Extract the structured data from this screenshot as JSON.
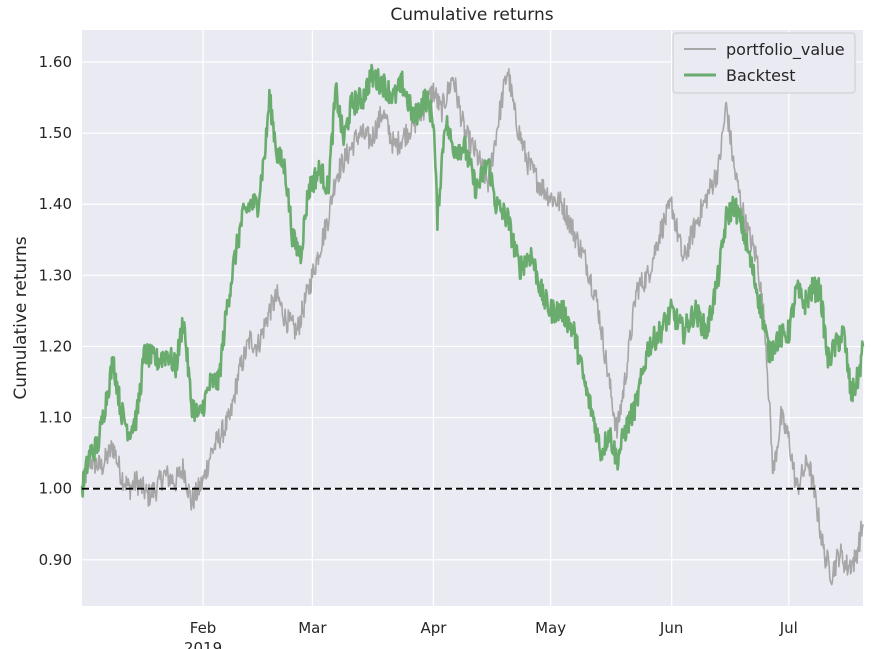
{
  "chart_data": {
    "type": "line",
    "title": "Cumulative returns",
    "xlabel": "",
    "ylabel": "Cumulative returns",
    "xlim": [
      "2019-01-01",
      "2019-07-20"
    ],
    "ylim": [
      0.835,
      1.645
    ],
    "grid": true,
    "legend_position": "top-right",
    "x_ticks": [
      {
        "date": "2019-02-01",
        "label": "Feb",
        "sublabel": "2019"
      },
      {
        "date": "2019-03-01",
        "label": "Mar"
      },
      {
        "date": "2019-04-01",
        "label": "Apr"
      },
      {
        "date": "2019-05-01",
        "label": "May"
      },
      {
        "date": "2019-06-01",
        "label": "Jun"
      },
      {
        "date": "2019-07-01",
        "label": "Jul"
      }
    ],
    "y_ticks": [
      {
        "value": 0.9,
        "label": "0.90"
      },
      {
        "value": 1.0,
        "label": "1.00"
      },
      {
        "value": 1.1,
        "label": "1.10"
      },
      {
        "value": 1.2,
        "label": "1.20"
      },
      {
        "value": 1.3,
        "label": "1.30"
      },
      {
        "value": 1.4,
        "label": "1.40"
      },
      {
        "value": 1.5,
        "label": "1.50"
      },
      {
        "value": 1.6,
        "label": "1.60"
      }
    ],
    "reference_line": {
      "y": 1.0,
      "style": "dashed",
      "color": "#000000"
    },
    "series": [
      {
        "name": "portfolio_value",
        "color": "#a6a6a6",
        "points": [
          [
            "2019-01-01",
            1.0
          ],
          [
            "2019-01-03",
            1.04
          ],
          [
            "2019-01-06",
            1.03
          ],
          [
            "2019-01-09",
            1.06
          ],
          [
            "2019-01-11",
            1.02
          ],
          [
            "2019-01-13",
            1.0
          ],
          [
            "2019-01-15",
            1.01
          ],
          [
            "2019-01-18",
            0.99
          ],
          [
            "2019-01-20",
            1.0
          ],
          [
            "2019-01-22",
            1.02
          ],
          [
            "2019-01-25",
            1.01
          ],
          [
            "2019-01-27",
            1.03
          ],
          [
            "2019-01-29",
            0.98
          ],
          [
            "2019-02-01",
            1.01
          ],
          [
            "2019-02-03",
            1.05
          ],
          [
            "2019-02-06",
            1.08
          ],
          [
            "2019-02-08",
            1.1
          ],
          [
            "2019-02-10",
            1.16
          ],
          [
            "2019-02-13",
            1.21
          ],
          [
            "2019-02-15",
            1.2
          ],
          [
            "2019-02-18",
            1.25
          ],
          [
            "2019-02-20",
            1.27
          ],
          [
            "2019-02-22",
            1.24
          ],
          [
            "2019-02-25",
            1.22
          ],
          [
            "2019-02-28",
            1.28
          ],
          [
            "2019-03-02",
            1.32
          ],
          [
            "2019-03-05",
            1.38
          ],
          [
            "2019-03-07",
            1.44
          ],
          [
            "2019-03-10",
            1.47
          ],
          [
            "2019-03-13",
            1.5
          ],
          [
            "2019-03-16",
            1.49
          ],
          [
            "2019-03-19",
            1.53
          ],
          [
            "2019-03-22",
            1.48
          ],
          [
            "2019-03-25",
            1.5
          ],
          [
            "2019-03-28",
            1.52
          ],
          [
            "2019-04-01",
            1.56
          ],
          [
            "2019-04-03",
            1.53
          ],
          [
            "2019-04-06",
            1.58
          ],
          [
            "2019-04-09",
            1.5
          ],
          [
            "2019-04-12",
            1.47
          ],
          [
            "2019-04-15",
            1.43
          ],
          [
            "2019-04-18",
            1.53
          ],
          [
            "2019-04-20",
            1.59
          ],
          [
            "2019-04-22",
            1.52
          ],
          [
            "2019-04-25",
            1.46
          ],
          [
            "2019-04-28",
            1.43
          ],
          [
            "2019-05-01",
            1.41
          ],
          [
            "2019-05-04",
            1.4
          ],
          [
            "2019-05-07",
            1.36
          ],
          [
            "2019-05-10",
            1.32
          ],
          [
            "2019-05-13",
            1.26
          ],
          [
            "2019-05-16",
            1.15
          ],
          [
            "2019-05-18",
            1.08
          ],
          [
            "2019-05-20",
            1.15
          ],
          [
            "2019-05-23",
            1.28
          ],
          [
            "2019-05-26",
            1.3
          ],
          [
            "2019-05-29",
            1.36
          ],
          [
            "2019-06-01",
            1.4
          ],
          [
            "2019-06-04",
            1.32
          ],
          [
            "2019-06-07",
            1.37
          ],
          [
            "2019-06-10",
            1.41
          ],
          [
            "2019-06-13",
            1.45
          ],
          [
            "2019-06-15",
            1.54
          ],
          [
            "2019-06-17",
            1.45
          ],
          [
            "2019-06-20",
            1.37
          ],
          [
            "2019-06-23",
            1.32
          ],
          [
            "2019-06-25",
            1.22
          ],
          [
            "2019-06-27",
            1.02
          ],
          [
            "2019-06-29",
            1.1
          ],
          [
            "2019-07-01",
            1.07
          ],
          [
            "2019-07-03",
            1.0
          ],
          [
            "2019-07-06",
            1.04
          ],
          [
            "2019-07-08",
            0.98
          ],
          [
            "2019-07-10",
            0.91
          ],
          [
            "2019-07-12",
            0.88
          ],
          [
            "2019-07-14",
            0.91
          ],
          [
            "2019-07-16",
            0.89
          ],
          [
            "2019-07-18",
            0.9
          ],
          [
            "2019-07-20",
            0.95
          ]
        ]
      },
      {
        "name": "Backtest",
        "color": "#6aac6e",
        "points": [
          [
            "2019-01-01",
            1.0
          ],
          [
            "2019-01-03",
            1.05
          ],
          [
            "2019-01-05",
            1.06
          ],
          [
            "2019-01-07",
            1.12
          ],
          [
            "2019-01-09",
            1.18
          ],
          [
            "2019-01-11",
            1.11
          ],
          [
            "2019-01-13",
            1.08
          ],
          [
            "2019-01-15",
            1.1
          ],
          [
            "2019-01-17",
            1.19
          ],
          [
            "2019-01-20",
            1.18
          ],
          [
            "2019-01-23",
            1.19
          ],
          [
            "2019-01-25",
            1.17
          ],
          [
            "2019-01-27",
            1.24
          ],
          [
            "2019-01-29",
            1.12
          ],
          [
            "2019-01-31",
            1.1
          ],
          [
            "2019-02-03",
            1.15
          ],
          [
            "2019-02-05",
            1.15
          ],
          [
            "2019-02-07",
            1.25
          ],
          [
            "2019-02-09",
            1.32
          ],
          [
            "2019-02-11",
            1.38
          ],
          [
            "2019-02-13",
            1.4
          ],
          [
            "2019-02-15",
            1.4
          ],
          [
            "2019-02-17",
            1.48
          ],
          [
            "2019-02-18",
            1.55
          ],
          [
            "2019-02-20",
            1.47
          ],
          [
            "2019-02-22",
            1.45
          ],
          [
            "2019-02-24",
            1.35
          ],
          [
            "2019-02-26",
            1.33
          ],
          [
            "2019-02-28",
            1.42
          ],
          [
            "2019-03-03",
            1.45
          ],
          [
            "2019-03-05",
            1.42
          ],
          [
            "2019-03-07",
            1.56
          ],
          [
            "2019-03-09",
            1.49
          ],
          [
            "2019-03-11",
            1.54
          ],
          [
            "2019-03-14",
            1.55
          ],
          [
            "2019-03-16",
            1.58
          ],
          [
            "2019-03-19",
            1.57
          ],
          [
            "2019-03-22",
            1.55
          ],
          [
            "2019-03-24",
            1.57
          ],
          [
            "2019-03-27",
            1.52
          ],
          [
            "2019-03-30",
            1.55
          ],
          [
            "2019-04-01",
            1.52
          ],
          [
            "2019-04-02",
            1.38
          ],
          [
            "2019-04-04",
            1.52
          ],
          [
            "2019-04-06",
            1.48
          ],
          [
            "2019-04-09",
            1.48
          ],
          [
            "2019-04-12",
            1.42
          ],
          [
            "2019-04-15",
            1.46
          ],
          [
            "2019-04-17",
            1.4
          ],
          [
            "2019-04-20",
            1.38
          ],
          [
            "2019-04-23",
            1.31
          ],
          [
            "2019-04-26",
            1.33
          ],
          [
            "2019-04-29",
            1.27
          ],
          [
            "2019-05-01",
            1.25
          ],
          [
            "2019-05-04",
            1.25
          ],
          [
            "2019-05-07",
            1.22
          ],
          [
            "2019-05-10",
            1.14
          ],
          [
            "2019-05-12",
            1.1
          ],
          [
            "2019-05-14",
            1.05
          ],
          [
            "2019-05-16",
            1.08
          ],
          [
            "2019-05-18",
            1.04
          ],
          [
            "2019-05-20",
            1.08
          ],
          [
            "2019-05-23",
            1.12
          ],
          [
            "2019-05-26",
            1.2
          ],
          [
            "2019-05-29",
            1.22
          ],
          [
            "2019-06-01",
            1.25
          ],
          [
            "2019-06-04",
            1.22
          ],
          [
            "2019-06-07",
            1.25
          ],
          [
            "2019-06-10",
            1.22
          ],
          [
            "2019-06-13",
            1.3
          ],
          [
            "2019-06-15",
            1.38
          ],
          [
            "2019-06-17",
            1.4
          ],
          [
            "2019-06-19",
            1.37
          ],
          [
            "2019-06-22",
            1.3
          ],
          [
            "2019-06-24",
            1.25
          ],
          [
            "2019-06-26",
            1.19
          ],
          [
            "2019-06-28",
            1.21
          ],
          [
            "2019-07-01",
            1.22
          ],
          [
            "2019-07-03",
            1.28
          ],
          [
            "2019-07-05",
            1.26
          ],
          [
            "2019-07-07",
            1.28
          ],
          [
            "2019-07-09",
            1.28
          ],
          [
            "2019-07-11",
            1.18
          ],
          [
            "2019-07-13",
            1.2
          ],
          [
            "2019-07-15",
            1.22
          ],
          [
            "2019-07-17",
            1.13
          ],
          [
            "2019-07-19",
            1.16
          ],
          [
            "2019-07-20",
            1.2
          ]
        ]
      }
    ]
  }
}
